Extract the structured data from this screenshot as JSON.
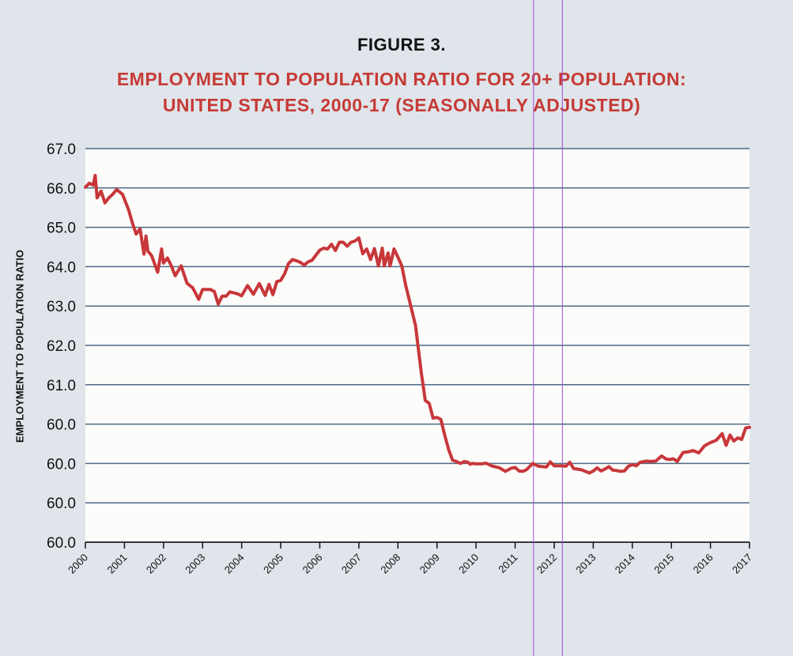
{
  "figure_label": "FIGURE 3.",
  "title_line1": "EMPLOYMENT TO POPULATION RATIO FOR 20+ POPULATION:",
  "title_line2": "UNITED STATES, 2000-17 (SEASONALLY ADJUSTED)",
  "colors": {
    "line": "#c8373a",
    "grid": "#4d6a85",
    "background": "#dfe5ea",
    "plot_bg": "#fcfcfa",
    "guide": "#9b4fd6"
  },
  "chart_data": {
    "type": "line",
    "title": "EMPLOYMENT TO POPULATION RATIO FOR 20+ POPULATION: UNITED STATES, 2000-17 (SEASONALLY ADJUSTED)",
    "xlabel": "",
    "ylabel": "EMPLOYMENT TO POPULATION RATIO",
    "grid": true,
    "y_tick_labels": [
      "67.0",
      "66.0",
      "65.0",
      "64.0",
      "63.0",
      "62.0",
      "61.0",
      "60.0",
      "60.0",
      "60.0",
      "60.0"
    ],
    "x_tick_labels": [
      "2000",
      "2001",
      "2002",
      "2003",
      "2004",
      "2005",
      "2006",
      "2007",
      "2008",
      "2009",
      "2010",
      "2011",
      "2012",
      "2013",
      "2014",
      "2015",
      "2016",
      "2017"
    ],
    "xlim": [
      2000,
      2017
    ],
    "ylim_axis_positions": [
      0,
      10
    ],
    "guide_lines_x": [
      2011.47,
      2012.21
    ],
    "series": [
      {
        "name": "Employment to population ratio",
        "x": [
          2000.0,
          2000.1,
          2000.2,
          2000.25,
          2000.3,
          2000.4,
          2000.5,
          2000.6,
          2000.7,
          2000.8,
          2000.95,
          2001.1,
          2001.2,
          2001.3,
          2001.4,
          2001.5,
          2001.55,
          2001.6,
          2001.65,
          2001.7,
          2001.85,
          2001.95,
          2002.0,
          2002.1,
          2002.2,
          2002.3,
          2002.45,
          2002.6,
          2002.75,
          2002.9,
          2003.0,
          2003.1,
          2003.2,
          2003.3,
          2003.4,
          2003.5,
          2003.6,
          2003.7,
          2003.9,
          2004.0,
          2004.15,
          2004.3,
          2004.45,
          2004.6,
          2004.7,
          2004.8,
          2004.9,
          2005.0,
          2005.1,
          2005.2,
          2005.3,
          2005.4,
          2005.5,
          2005.6,
          2005.7,
          2005.8,
          2006.0,
          2006.1,
          2006.2,
          2006.3,
          2006.4,
          2006.5,
          2006.6,
          2006.7,
          2006.8,
          2006.9,
          2007.0,
          2007.1,
          2007.2,
          2007.3,
          2007.4,
          2007.5,
          2007.6,
          2007.65,
          2007.75,
          2007.8,
          2007.9,
          2008.0,
          2008.1,
          2008.2,
          2008.3,
          2008.45,
          2008.6,
          2008.7,
          2008.8,
          2008.9,
          2009.0,
          2009.1,
          2009.2,
          2009.3,
          2009.4,
          2009.5,
          2009.6,
          2009.7,
          2009.8,
          2009.85,
          2009.9,
          2010.0,
          2010.15,
          2010.25,
          2010.4,
          2010.6,
          2010.75,
          2010.9,
          2011.0,
          2011.1,
          2011.2,
          2011.3,
          2011.45,
          2011.6,
          2011.8,
          2011.9,
          2012.0,
          2012.1,
          2012.2,
          2012.3,
          2012.4,
          2012.5,
          2012.7,
          2012.9,
          2013.0,
          2013.1,
          2013.2,
          2013.3,
          2013.4,
          2013.5,
          2013.6,
          2013.7,
          2013.8,
          2013.9,
          2014.0,
          2014.1,
          2014.2,
          2014.35,
          2014.45,
          2014.6,
          2014.75,
          2014.85,
          2014.95,
          2015.05,
          2015.15,
          2015.3,
          2015.45,
          2015.55,
          2015.7,
          2015.85,
          2016.0,
          2016.15,
          2016.3,
          2016.4,
          2016.5,
          2016.6,
          2016.7,
          2016.8,
          2016.9,
          2017.0
        ],
        "y": [
          0.98,
          0.88,
          0.93,
          0.68,
          1.25,
          1.08,
          1.38,
          1.25,
          1.16,
          1.04,
          1.16,
          1.54,
          1.88,
          2.17,
          2.04,
          2.68,
          2.22,
          2.61,
          2.66,
          2.73,
          3.14,
          2.55,
          2.91,
          2.78,
          2.98,
          3.23,
          2.98,
          3.42,
          3.54,
          3.83,
          3.58,
          3.58,
          3.58,
          3.63,
          3.95,
          3.75,
          3.75,
          3.64,
          3.69,
          3.74,
          3.48,
          3.7,
          3.43,
          3.73,
          3.45,
          3.71,
          3.38,
          3.35,
          3.18,
          2.92,
          2.82,
          2.85,
          2.89,
          2.96,
          2.88,
          2.84,
          2.58,
          2.53,
          2.55,
          2.43,
          2.59,
          2.38,
          2.38,
          2.48,
          2.38,
          2.35,
          2.27,
          2.67,
          2.55,
          2.82,
          2.54,
          2.98,
          2.53,
          2.98,
          2.65,
          2.98,
          2.55,
          2.76,
          2.98,
          3.48,
          3.88,
          4.49,
          5.7,
          6.4,
          6.47,
          6.85,
          6.83,
          6.88,
          7.29,
          7.65,
          7.92,
          7.95,
          8.0,
          7.95,
          7.97,
          8.02,
          8.0,
          8.01,
          8.01,
          7.99,
          8.06,
          8.11,
          8.2,
          8.12,
          8.1,
          8.19,
          8.2,
          8.15,
          8.0,
          8.07,
          8.09,
          7.96,
          8.06,
          8.06,
          8.06,
          8.07,
          7.97,
          8.13,
          8.16,
          8.24,
          8.19,
          8.11,
          8.19,
          8.14,
          8.08,
          8.17,
          8.18,
          8.2,
          8.19,
          8.07,
          8.03,
          8.06,
          7.97,
          7.94,
          7.95,
          7.94,
          7.81,
          7.88,
          7.9,
          7.88,
          7.95,
          7.72,
          7.7,
          7.67,
          7.73,
          7.55,
          7.47,
          7.41,
          7.24,
          7.54,
          7.28,
          7.43,
          7.35,
          7.39,
          7.1,
          7.08
        ]
      }
    ]
  }
}
